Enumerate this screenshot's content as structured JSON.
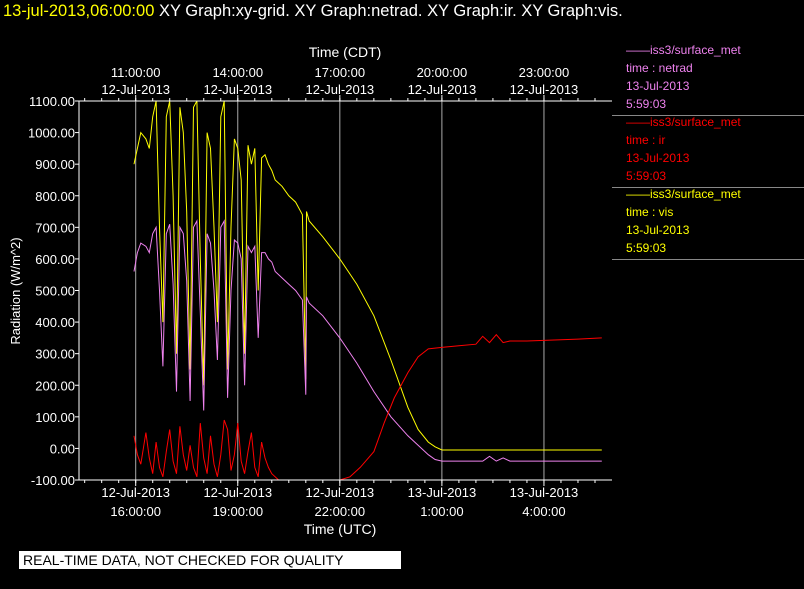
{
  "header": {
    "timestamp": "13-jul-2013,06:00:00",
    "titles": "XY Graph:xy-grid.  XY Graph:netrad.  XY Graph:ir.  XY Graph:vis."
  },
  "banner": "REAL-TIME DATA, NOT CHECKED FOR QUALITY",
  "legend": [
    {
      "source": "——iss3/surface_met",
      "label": "time : netrad",
      "date": "13-Jul-2013",
      "time": "5:59:03",
      "color": "#ee82ee"
    },
    {
      "source": "——iss3/surface_met",
      "label": "time : ir",
      "date": "13-Jul-2013",
      "time": "5:59:03",
      "color": "#ff0000"
    },
    {
      "source": "——iss3/surface_met",
      "label": "time : vis",
      "date": "13-Jul-2013",
      "time": "5:59:03",
      "color": "#ffff00"
    }
  ],
  "chart_data": {
    "type": "line",
    "ylabel": "Radiation (W/m^2)",
    "xlabel_bottom": "Time (UTC)",
    "xlabel_top": "Time (CDT)",
    "xlim": [
      "2013-07-12 14:20",
      "2013-07-13 06:00"
    ],
    "ylim": [
      -100,
      1100
    ],
    "grid": true,
    "y_ticks": [
      "-100.00",
      "0.00",
      "100.00",
      "200.00",
      "300.00",
      "400.00",
      "500.00",
      "600.00",
      "700.00",
      "800.00",
      "900.00",
      "1000.00",
      "1100.00"
    ],
    "x_ticks_bottom": [
      {
        "date": "12-Jul-2013",
        "time": "16:00:00"
      },
      {
        "date": "12-Jul-2013",
        "time": "19:00:00"
      },
      {
        "date": "12-Jul-2013",
        "time": "22:00:00"
      },
      {
        "date": "13-Jul-2013",
        "time": "1:00:00"
      },
      {
        "date": "13-Jul-2013",
        "time": "4:00:00"
      }
    ],
    "x_ticks_top": [
      {
        "time": "11:00:00",
        "date": "12-Jul-2013"
      },
      {
        "time": "14:00:00",
        "date": "12-Jul-2013"
      },
      {
        "time": "17:00:00",
        "date": "12-Jul-2013"
      },
      {
        "time": "20:00:00",
        "date": "12-Jul-2013"
      },
      {
        "time": "23:00:00",
        "date": "12-Jul-2013"
      }
    ],
    "x_tick_hours": [
      16,
      19,
      22,
      25,
      28
    ],
    "series": [
      {
        "name": "vis",
        "color": "#ffff00",
        "x": [
          15.95,
          16.05,
          16.15,
          16.3,
          16.4,
          16.5,
          16.6,
          16.7,
          16.8,
          16.9,
          17.0,
          17.1,
          17.2,
          17.3,
          17.4,
          17.5,
          17.6,
          17.7,
          17.8,
          17.9,
          18.0,
          18.1,
          18.2,
          18.3,
          18.4,
          18.5,
          18.6,
          18.7,
          18.8,
          18.9,
          19.0,
          19.1,
          19.2,
          19.3,
          19.4,
          19.5,
          19.6,
          19.7,
          19.8,
          19.9,
          20.0,
          20.1,
          20.3,
          20.5,
          20.7,
          20.9,
          21.0,
          21.02,
          21.1,
          21.5,
          22.0,
          22.5,
          23.0,
          23.5,
          24.0,
          24.3,
          24.6,
          24.8,
          25.0,
          25.5,
          26.0,
          26.5,
          27.0,
          27.5,
          28.0,
          28.5,
          29.0,
          29.7
        ],
        "y": [
          900,
          950,
          1000,
          980,
          950,
          1050,
          1100,
          700,
          400,
          1050,
          1100,
          800,
          300,
          1080,
          1000,
          750,
          250,
          1080,
          1100,
          600,
          200,
          1000,
          950,
          700,
          400,
          1050,
          1100,
          250,
          700,
          980,
          950,
          850,
          300,
          960,
          900,
          950,
          500,
          920,
          930,
          900,
          880,
          850,
          830,
          800,
          780,
          740,
          220,
          750,
          720,
          670,
          600,
          520,
          420,
          280,
          130,
          60,
          20,
          5,
          -5,
          -5,
          -5,
          -5,
          -5,
          -5,
          -5,
          -5,
          -5,
          -5
        ]
      },
      {
        "name": "netrad",
        "color": "#ee82ee",
        "x": [
          15.95,
          16.05,
          16.15,
          16.3,
          16.4,
          16.5,
          16.6,
          16.7,
          16.8,
          16.9,
          17.0,
          17.1,
          17.2,
          17.3,
          17.4,
          17.5,
          17.6,
          17.7,
          17.8,
          17.9,
          18.0,
          18.1,
          18.2,
          18.3,
          18.4,
          18.5,
          18.6,
          18.7,
          18.8,
          18.9,
          19.0,
          19.1,
          19.2,
          19.3,
          19.4,
          19.5,
          19.6,
          19.7,
          19.8,
          19.9,
          20.0,
          20.1,
          20.3,
          20.5,
          20.7,
          20.9,
          21.0,
          21.02,
          21.1,
          21.5,
          22.0,
          22.5,
          23.0,
          23.5,
          24.0,
          24.3,
          24.6,
          24.8,
          25.0,
          25.5,
          26.0,
          26.2,
          26.4,
          26.6,
          26.8,
          27.0,
          27.5,
          28.0,
          28.5,
          29.0,
          29.7
        ],
        "y": [
          560,
          620,
          650,
          640,
          620,
          680,
          700,
          500,
          260,
          680,
          710,
          520,
          180,
          700,
          680,
          530,
          150,
          700,
          720,
          430,
          120,
          680,
          650,
          500,
          280,
          700,
          720,
          160,
          500,
          660,
          650,
          600,
          200,
          640,
          620,
          640,
          350,
          620,
          620,
          600,
          590,
          560,
          540,
          520,
          500,
          470,
          170,
          480,
          460,
          420,
          350,
          270,
          180,
          100,
          40,
          10,
          -20,
          -35,
          -40,
          -40,
          -40,
          -40,
          -25,
          -40,
          -30,
          -40,
          -40,
          -40,
          -40,
          -40,
          -40
        ]
      },
      {
        "name": "ir",
        "color": "#ff0000",
        "x": [
          15.95,
          16.05,
          16.15,
          16.3,
          16.4,
          16.5,
          16.6,
          16.7,
          16.8,
          16.9,
          17.0,
          17.1,
          17.2,
          17.3,
          17.4,
          17.5,
          17.6,
          17.7,
          17.8,
          17.9,
          18.0,
          18.1,
          18.2,
          18.3,
          18.4,
          18.5,
          18.6,
          18.7,
          18.8,
          18.9,
          19.0,
          19.1,
          19.2,
          19.3,
          19.4,
          19.5,
          19.6,
          19.7,
          19.8,
          19.9,
          20.0,
          20.2,
          20.5,
          21.0,
          22.0,
          22.3,
          22.6,
          23.0,
          23.3,
          23.6,
          24.0,
          24.3,
          24.6,
          25.0,
          25.5,
          26.0,
          26.2,
          26.4,
          26.6,
          26.8,
          27.0,
          27.5,
          28.0,
          28.5,
          29.0,
          29.7
        ],
        "y": [
          40,
          -20,
          -50,
          50,
          -30,
          -80,
          20,
          -60,
          -90,
          -10,
          60,
          -40,
          -80,
          70,
          -20,
          -70,
          10,
          -60,
          -90,
          80,
          -30,
          -80,
          40,
          -50,
          -90,
          -20,
          90,
          60,
          -70,
          -20,
          80,
          -40,
          -80,
          -10,
          50,
          -60,
          -90,
          20,
          -30,
          -60,
          -80,
          -100,
          -100,
          -100,
          -100,
          -90,
          -60,
          -10,
          80,
          160,
          240,
          290,
          315,
          320,
          325,
          330,
          355,
          335,
          360,
          335,
          340,
          340,
          342,
          344,
          346,
          350
        ]
      }
    ]
  }
}
